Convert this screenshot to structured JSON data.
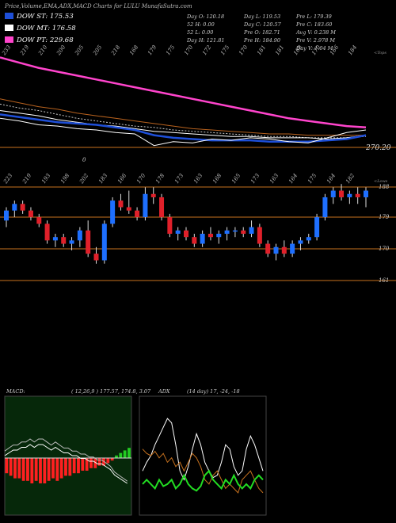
{
  "header": {
    "title": "Price,Volume,EMA,ADX,MACD Charts for LULU",
    "site": "MunafaSutra.com"
  },
  "dow": [
    {
      "label": "DOW ST:",
      "value": "175.53",
      "color": "#1e4fd8"
    },
    {
      "label": "DOW MT:",
      "value": "176.58",
      "color": "#ffffff"
    },
    {
      "label": "DOW PT:",
      "value": "229.68",
      "color": "#ff44cc"
    }
  ],
  "stats": [
    [
      "Day O: 120.18",
      "52 H: 0.00",
      "52 L: 0.00"
    ],
    [
      "Day H: 121.81",
      "Day L: 119.53",
      "Day C: 120.57"
    ],
    [
      "Pre O: 182.71",
      "Pre H: 184.90",
      "Pre L: 179.39",
      "Pre C: 183.60"
    ],
    [
      "Avg V: 0.238 M",
      "Pre V: 2.978 M",
      "Day V: 1.04 M"
    ]
  ],
  "chart_data": [
    {
      "type": "line",
      "title": "EMA",
      "corner_label": "<Tops",
      "top_ticks": [
        "233",
        "219",
        "210",
        "200",
        "205",
        "205",
        "218",
        "168",
        "179",
        "175",
        "170",
        "172",
        "175",
        "170",
        "181",
        "181",
        "168",
        "170",
        "166",
        "184"
      ],
      "reference_line": {
        "label": "270.20",
        "color": "#c8721e"
      },
      "x": [
        1,
        2,
        3,
        4,
        5,
        6,
        7,
        8,
        9,
        10,
        11,
        12,
        13,
        14,
        15,
        16,
        17,
        18,
        19,
        20
      ],
      "series": [
        {
          "values": [
            228,
            224,
            220,
            217,
            214,
            211,
            208,
            205,
            202,
            199,
            196,
            193,
            190,
            187,
            184,
            181,
            179,
            177,
            175,
            174
          ],
          "color": "#ff44cc"
        },
        {
          "values": [
            196,
            193,
            190,
            188,
            185,
            183,
            181,
            179,
            177,
            175,
            173,
            172,
            171,
            170,
            169,
            169,
            168,
            168,
            168,
            168
          ],
          "color": "#b8621e"
        },
        {
          "values": [
            192,
            189,
            187,
            184,
            181,
            179,
            177,
            175,
            174,
            172,
            171,
            170,
            169,
            168,
            167,
            167,
            166,
            166,
            166,
            167
          ],
          "color": "#cccccc"
        },
        {
          "values": [
            187,
            185,
            183,
            180,
            178,
            176,
            175,
            173,
            171,
            170,
            169,
            168,
            167,
            167,
            166,
            166,
            166,
            165,
            166,
            168
          ],
          "color": "#ffffff"
        },
        {
          "values": [
            184,
            182,
            180,
            178,
            177,
            176,
            174,
            172,
            168,
            166,
            165,
            164,
            164,
            164,
            163,
            163,
            163,
            164,
            165,
            168
          ],
          "color": "#1e4fd8"
        },
        {
          "values": [
            181,
            179,
            176,
            175,
            173,
            172,
            170,
            169,
            160,
            163,
            162,
            165,
            164,
            166,
            165,
            163,
            162,
            166,
            170,
            172
          ],
          "color": "#ffffff"
        }
      ],
      "annotation": "0"
    },
    {
      "type": "bar",
      "title": "Price",
      "corner_label": "<Lows",
      "top_ticks": [
        "223",
        "219",
        "193",
        "198",
        "202",
        "183",
        "166",
        "170",
        "178",
        "173",
        "163",
        "168",
        "165",
        "173",
        "163",
        "164",
        "175",
        "164",
        "182"
      ],
      "y_labels": [
        "188",
        "179",
        "170",
        "161"
      ],
      "ylim": [
        158,
        190
      ],
      "series": [
        {
          "name": "candles",
          "ohlc": [
            [
              178,
              182,
              176,
              181
            ],
            [
              181,
              184,
              179,
              183
            ],
            [
              183,
              184,
              180,
              181
            ],
            [
              181,
              182,
              178,
              179
            ],
            [
              179,
              180,
              176,
              177
            ],
            [
              177,
              178,
              171,
              172
            ],
            [
              172,
              174,
              170,
              173
            ],
            [
              173,
              174,
              170,
              171
            ],
            [
              171,
              173,
              169,
              172
            ],
            [
              172,
              176,
              170,
              175
            ],
            [
              175,
              178,
              167,
              168
            ],
            [
              168,
              170,
              165,
              166
            ],
            [
              166,
              178,
              165,
              177
            ],
            [
              177,
              185,
              176,
              184
            ],
            [
              184,
              186,
              181,
              182
            ],
            [
              182,
              187,
              180,
              181
            ],
            [
              181,
              182,
              178,
              179
            ],
            [
              179,
              188,
              178,
              186
            ],
            [
              186,
              188,
              183,
              185
            ],
            [
              185,
              186,
              178,
              179
            ],
            [
              179,
              180,
              173,
              174
            ],
            [
              174,
              176,
              172,
              175
            ],
            [
              175,
              176,
              172,
              173
            ],
            [
              173,
              174,
              170,
              171
            ],
            [
              171,
              175,
              170,
              174
            ],
            [
              174,
              176,
              172,
              173
            ],
            [
              173,
              175,
              171,
              174
            ],
            [
              174,
              176,
              172,
              175
            ],
            [
              175,
              176,
              173,
              175
            ],
            [
              175,
              176,
              173,
              174
            ],
            [
              174,
              178,
              173,
              176
            ],
            [
              176,
              177,
              170,
              171
            ],
            [
              171,
              172,
              167,
              168
            ],
            [
              168,
              171,
              166,
              170
            ],
            [
              170,
              172,
              167,
              168
            ],
            [
              168,
              172,
              167,
              171
            ],
            [
              171,
              173,
              169,
              172
            ],
            [
              172,
              174,
              171,
              173
            ],
            [
              173,
              180,
              172,
              179
            ],
            [
              179,
              186,
              178,
              185
            ],
            [
              185,
              188,
              183,
              187
            ],
            [
              187,
              189,
              184,
              185
            ],
            [
              185,
              187,
              183,
              186
            ],
            [
              186,
              188,
              183,
              185
            ],
            [
              185,
              188,
              182,
              187
            ]
          ]
        }
      ]
    },
    {
      "type": "bar",
      "title": "MACD",
      "label": "MACD:",
      "params": "( 12,26,9 ) 177.57, 174.8, 3.07",
      "values": [
        -6,
        -7,
        -8,
        -8,
        -9,
        -9,
        -10,
        -9,
        -10,
        -10,
        -9,
        -8,
        -9,
        -8,
        -7,
        -7,
        -6,
        -6,
        -5,
        -5,
        -4,
        -4,
        -3,
        -3,
        -2,
        -1,
        1,
        2,
        3,
        4
      ]
    },
    {
      "type": "line",
      "title": "ADX",
      "label": "ADX",
      "params": "(14 day) 17, -24, -18",
      "x": [
        1,
        2,
        3,
        4,
        5,
        6,
        7,
        8,
        9,
        10,
        11,
        12,
        13,
        14,
        15,
        16,
        17,
        18,
        19,
        20,
        21,
        22,
        23,
        24,
        25,
        26,
        27,
        28,
        29,
        30
      ],
      "series": [
        {
          "values": [
            18,
            22,
            25,
            30,
            34,
            38,
            42,
            40,
            30,
            18,
            14,
            20,
            28,
            35,
            30,
            22,
            18,
            15,
            16,
            22,
            30,
            28,
            20,
            16,
            18,
            28,
            34,
            30,
            24,
            18
          ],
          "color": "#ffffff"
        },
        {
          "values": [
            28,
            26,
            25,
            27,
            24,
            26,
            22,
            24,
            20,
            22,
            18,
            22,
            26,
            24,
            20,
            14,
            12,
            16,
            18,
            14,
            10,
            12,
            10,
            8,
            14,
            16,
            18,
            14,
            10,
            8
          ],
          "color": "#c8721e"
        },
        {
          "values": [
            12,
            14,
            12,
            10,
            14,
            11,
            12,
            14,
            10,
            12,
            16,
            12,
            10,
            9,
            11,
            16,
            18,
            14,
            12,
            10,
            14,
            12,
            16,
            12,
            10,
            12,
            10,
            14,
            16,
            14
          ],
          "color": "#22dd22"
        }
      ]
    }
  ]
}
